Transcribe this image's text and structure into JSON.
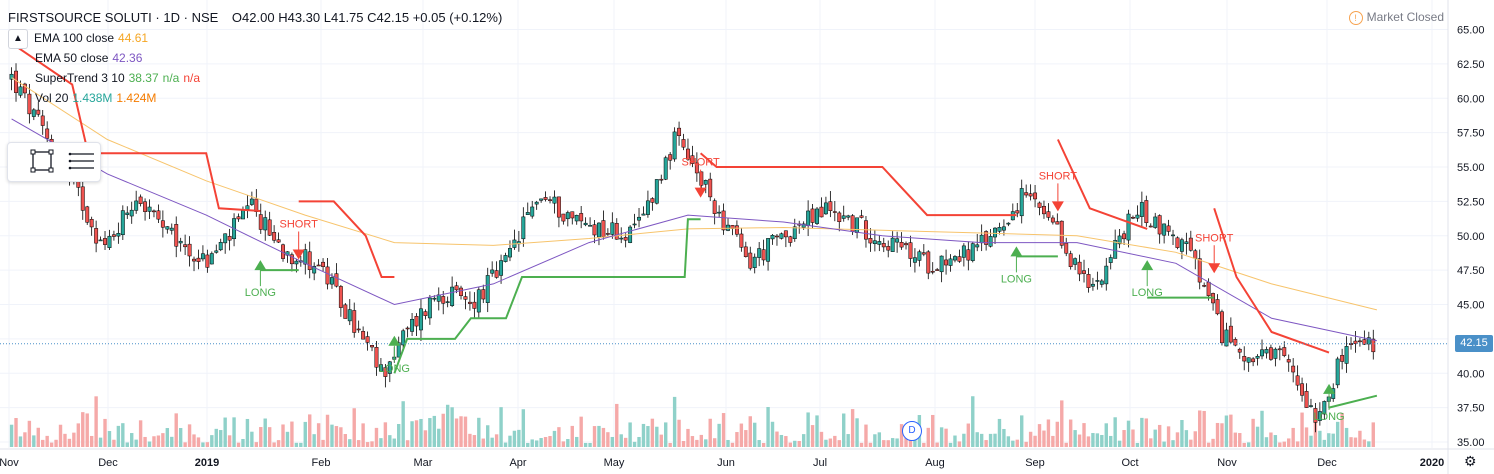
{
  "header": {
    "symbol": "FIRSTSOURCE SOLUTI",
    "interval": "1D",
    "exchange": "NSE",
    "separator": "·",
    "open": "O42.00",
    "high": "H43.30",
    "low": "L41.75",
    "close": "C42.15",
    "change": "+0.05 (+0.12%)"
  },
  "market_status": "Market Closed",
  "collapse_glyph": "▲",
  "indicators": {
    "ema100": {
      "label": "EMA 100 close",
      "value": "44.61"
    },
    "ema50": {
      "label": "EMA 50 close",
      "value": "42.36"
    },
    "supertrend": {
      "label": "SuperTrend 3 10",
      "value": "38.37",
      "v2": "n/a",
      "v3": "n/a"
    },
    "vol": {
      "label": "Vol 20",
      "value": "1.438M",
      "v2": "1.424M"
    }
  },
  "last_price": "42.15",
  "event_badge": "D",
  "colors": {
    "up": "#26a69a",
    "down": "#ef5350",
    "ema100": "#f7c46c",
    "ema50": "#7e57c2",
    "st_up": "#4caf50",
    "st_down": "#f44336",
    "vol_up": "#8fd1c9",
    "vol_down": "#f5a9a8",
    "price_tag": "#4a90c8"
  },
  "chart_data": {
    "type": "candlestick",
    "y_axis": {
      "min": 35,
      "max": 65,
      "ticks": [
        "35.00",
        "37.50",
        "40.00",
        "42.50",
        "45.00",
        "47.50",
        "50.00",
        "52.50",
        "55.00",
        "57.50",
        "60.00",
        "62.50",
        "65.00"
      ]
    },
    "x_labels": [
      "Nov",
      "Dec",
      "2019",
      "Feb",
      "Mar",
      "Apr",
      "May",
      "Jun",
      "Jul",
      "Aug",
      "Sep",
      "Oct",
      "Nov",
      "Dec",
      "2020"
    ],
    "signals": [
      {
        "type": "LONG",
        "date": "2019-01-18",
        "price": 47.5
      },
      {
        "type": "SHORT",
        "date": "2019-01-30",
        "price": 49.0
      },
      {
        "type": "LONG",
        "date": "2019-03-01",
        "price": 42.0
      },
      {
        "type": "SHORT",
        "date": "2019-06-05",
        "price": 53.5
      },
      {
        "type": "LONG",
        "date": "2019-09-12",
        "price": 48.5
      },
      {
        "type": "SHORT",
        "date": "2019-09-25",
        "price": 52.5
      },
      {
        "type": "LONG",
        "date": "2019-10-23",
        "price": 47.5
      },
      {
        "type": "SHORT",
        "date": "2019-11-13",
        "price": 48.0
      },
      {
        "type": "LONG",
        "date": "2019-12-19",
        "price": 38.5
      }
    ],
    "close_path": [
      [
        "2018-11-01",
        61.5
      ],
      [
        "2018-11-12",
        57
      ],
      [
        "2018-11-22",
        53
      ],
      [
        "2018-11-30",
        49
      ],
      [
        "2018-12-10",
        53
      ],
      [
        "2018-12-20",
        50
      ],
      [
        "2019-01-01",
        48
      ],
      [
        "2019-01-15",
        52
      ],
      [
        "2019-01-25",
        49
      ],
      [
        "2019-02-05",
        48
      ],
      [
        "2019-02-15",
        44
      ],
      [
        "2019-02-25",
        40
      ],
      [
        "2019-03-05",
        43
      ],
      [
        "2019-03-15",
        46
      ],
      [
        "2019-03-25",
        45
      ],
      [
        "2019-04-05",
        48
      ],
      [
        "2019-04-15",
        53
      ],
      [
        "2019-04-28",
        51
      ],
      [
        "2019-05-15",
        50
      ],
      [
        "2019-05-28",
        57
      ],
      [
        "2019-06-10",
        52
      ],
      [
        "2019-06-20",
        48
      ],
      [
        "2019-07-01",
        50
      ],
      [
        "2019-07-15",
        52
      ],
      [
        "2019-07-30",
        50
      ],
      [
        "2019-08-15",
        48
      ],
      [
        "2019-08-31",
        49
      ],
      [
        "2019-09-15",
        53
      ],
      [
        "2019-09-25",
        50
      ],
      [
        "2019-10-05",
        46
      ],
      [
        "2019-10-20",
        52
      ],
      [
        "2019-11-05",
        49
      ],
      [
        "2019-11-15",
        43
      ],
      [
        "2019-11-25",
        41
      ],
      [
        "2019-12-05",
        41
      ],
      [
        "2019-12-15",
        37
      ],
      [
        "2019-12-25",
        42
      ],
      [
        "2020-01-03",
        42.15
      ]
    ],
    "ema100_path": [
      [
        "2018-11-01",
        61.5
      ],
      [
        "2018-12-01",
        57
      ],
      [
        "2019-01-01",
        54
      ],
      [
        "2019-02-01",
        51.5
      ],
      [
        "2019-03-01",
        49.5
      ],
      [
        "2019-04-01",
        49.3
      ],
      [
        "2019-05-01",
        49.8
      ],
      [
        "2019-06-01",
        50.5
      ],
      [
        "2019-07-01",
        50.6
      ],
      [
        "2019-08-01",
        50.4
      ],
      [
        "2019-09-01",
        50.2
      ],
      [
        "2019-10-01",
        50.0
      ],
      [
        "2019-11-01",
        48.8
      ],
      [
        "2019-12-01",
        46.5
      ],
      [
        "2020-01-03",
        44.61
      ]
    ],
    "ema50_path": [
      [
        "2018-11-01",
        58.5
      ],
      [
        "2018-12-01",
        54.5
      ],
      [
        "2019-01-01",
        51.5
      ],
      [
        "2019-02-01",
        48
      ],
      [
        "2019-03-01",
        45
      ],
      [
        "2019-04-01",
        46.5
      ],
      [
        "2019-05-01",
        49.5
      ],
      [
        "2019-06-01",
        51.5
      ],
      [
        "2019-07-01",
        51
      ],
      [
        "2019-08-01",
        50
      ],
      [
        "2019-09-01",
        49.5
      ],
      [
        "2019-10-01",
        49.5
      ],
      [
        "2019-11-01",
        48
      ],
      [
        "2019-12-01",
        44
      ],
      [
        "2020-01-03",
        42.36
      ]
    ],
    "supertrend_segments": [
      {
        "dir": "down",
        "points": [
          [
            "2018-11-01",
            64
          ],
          [
            "2018-11-20",
            61
          ],
          [
            "2018-11-25",
            56
          ],
          [
            "2018-12-05",
            56
          ],
          [
            "2019-01-01",
            56
          ],
          [
            "2019-01-05",
            52
          ],
          [
            "2019-01-18",
            51.8
          ]
        ]
      },
      {
        "dir": "up",
        "points": [
          [
            "2019-01-18",
            47.5
          ],
          [
            "2019-01-30",
            47.5
          ]
        ]
      },
      {
        "dir": "down",
        "points": [
          [
            "2019-01-30",
            52.5
          ],
          [
            "2019-02-10",
            52.5
          ],
          [
            "2019-02-20",
            50
          ],
          [
            "2019-02-25",
            47
          ],
          [
            "2019-03-01",
            47
          ]
        ]
      },
      {
        "dir": "up",
        "points": [
          [
            "2019-03-01",
            40
          ],
          [
            "2019-03-05",
            42.5
          ],
          [
            "2019-03-20",
            42.5
          ],
          [
            "2019-03-25",
            44
          ],
          [
            "2019-04-05",
            44
          ],
          [
            "2019-04-10",
            47
          ],
          [
            "2019-05-31",
            47
          ],
          [
            "2019-06-01",
            51.2
          ],
          [
            "2019-06-05",
            51.2
          ]
        ]
      },
      {
        "dir": "down",
        "points": [
          [
            "2019-06-05",
            56
          ],
          [
            "2019-06-10",
            55
          ],
          [
            "2019-08-01",
            55
          ],
          [
            "2019-08-15",
            51.5
          ],
          [
            "2019-09-12",
            51.5
          ]
        ]
      },
      {
        "dir": "up",
        "points": [
          [
            "2019-09-12",
            48.5
          ],
          [
            "2019-09-25",
            48.5
          ]
        ]
      },
      {
        "dir": "down",
        "points": [
          [
            "2019-09-25",
            57
          ],
          [
            "2019-10-05",
            52
          ],
          [
            "2019-10-23",
            50.5
          ]
        ]
      },
      {
        "dir": "up",
        "points": [
          [
            "2019-10-23",
            45.5
          ],
          [
            "2019-11-13",
            45.5
          ]
        ]
      },
      {
        "dir": "down",
        "points": [
          [
            "2019-11-13",
            52
          ],
          [
            "2019-11-20",
            47
          ],
          [
            "2019-12-01",
            43
          ],
          [
            "2019-12-19",
            41.5
          ]
        ]
      },
      {
        "dir": "up",
        "points": [
          [
            "2019-12-19",
            37.5
          ],
          [
            "2020-01-03",
            38.37
          ]
        ]
      }
    ]
  }
}
